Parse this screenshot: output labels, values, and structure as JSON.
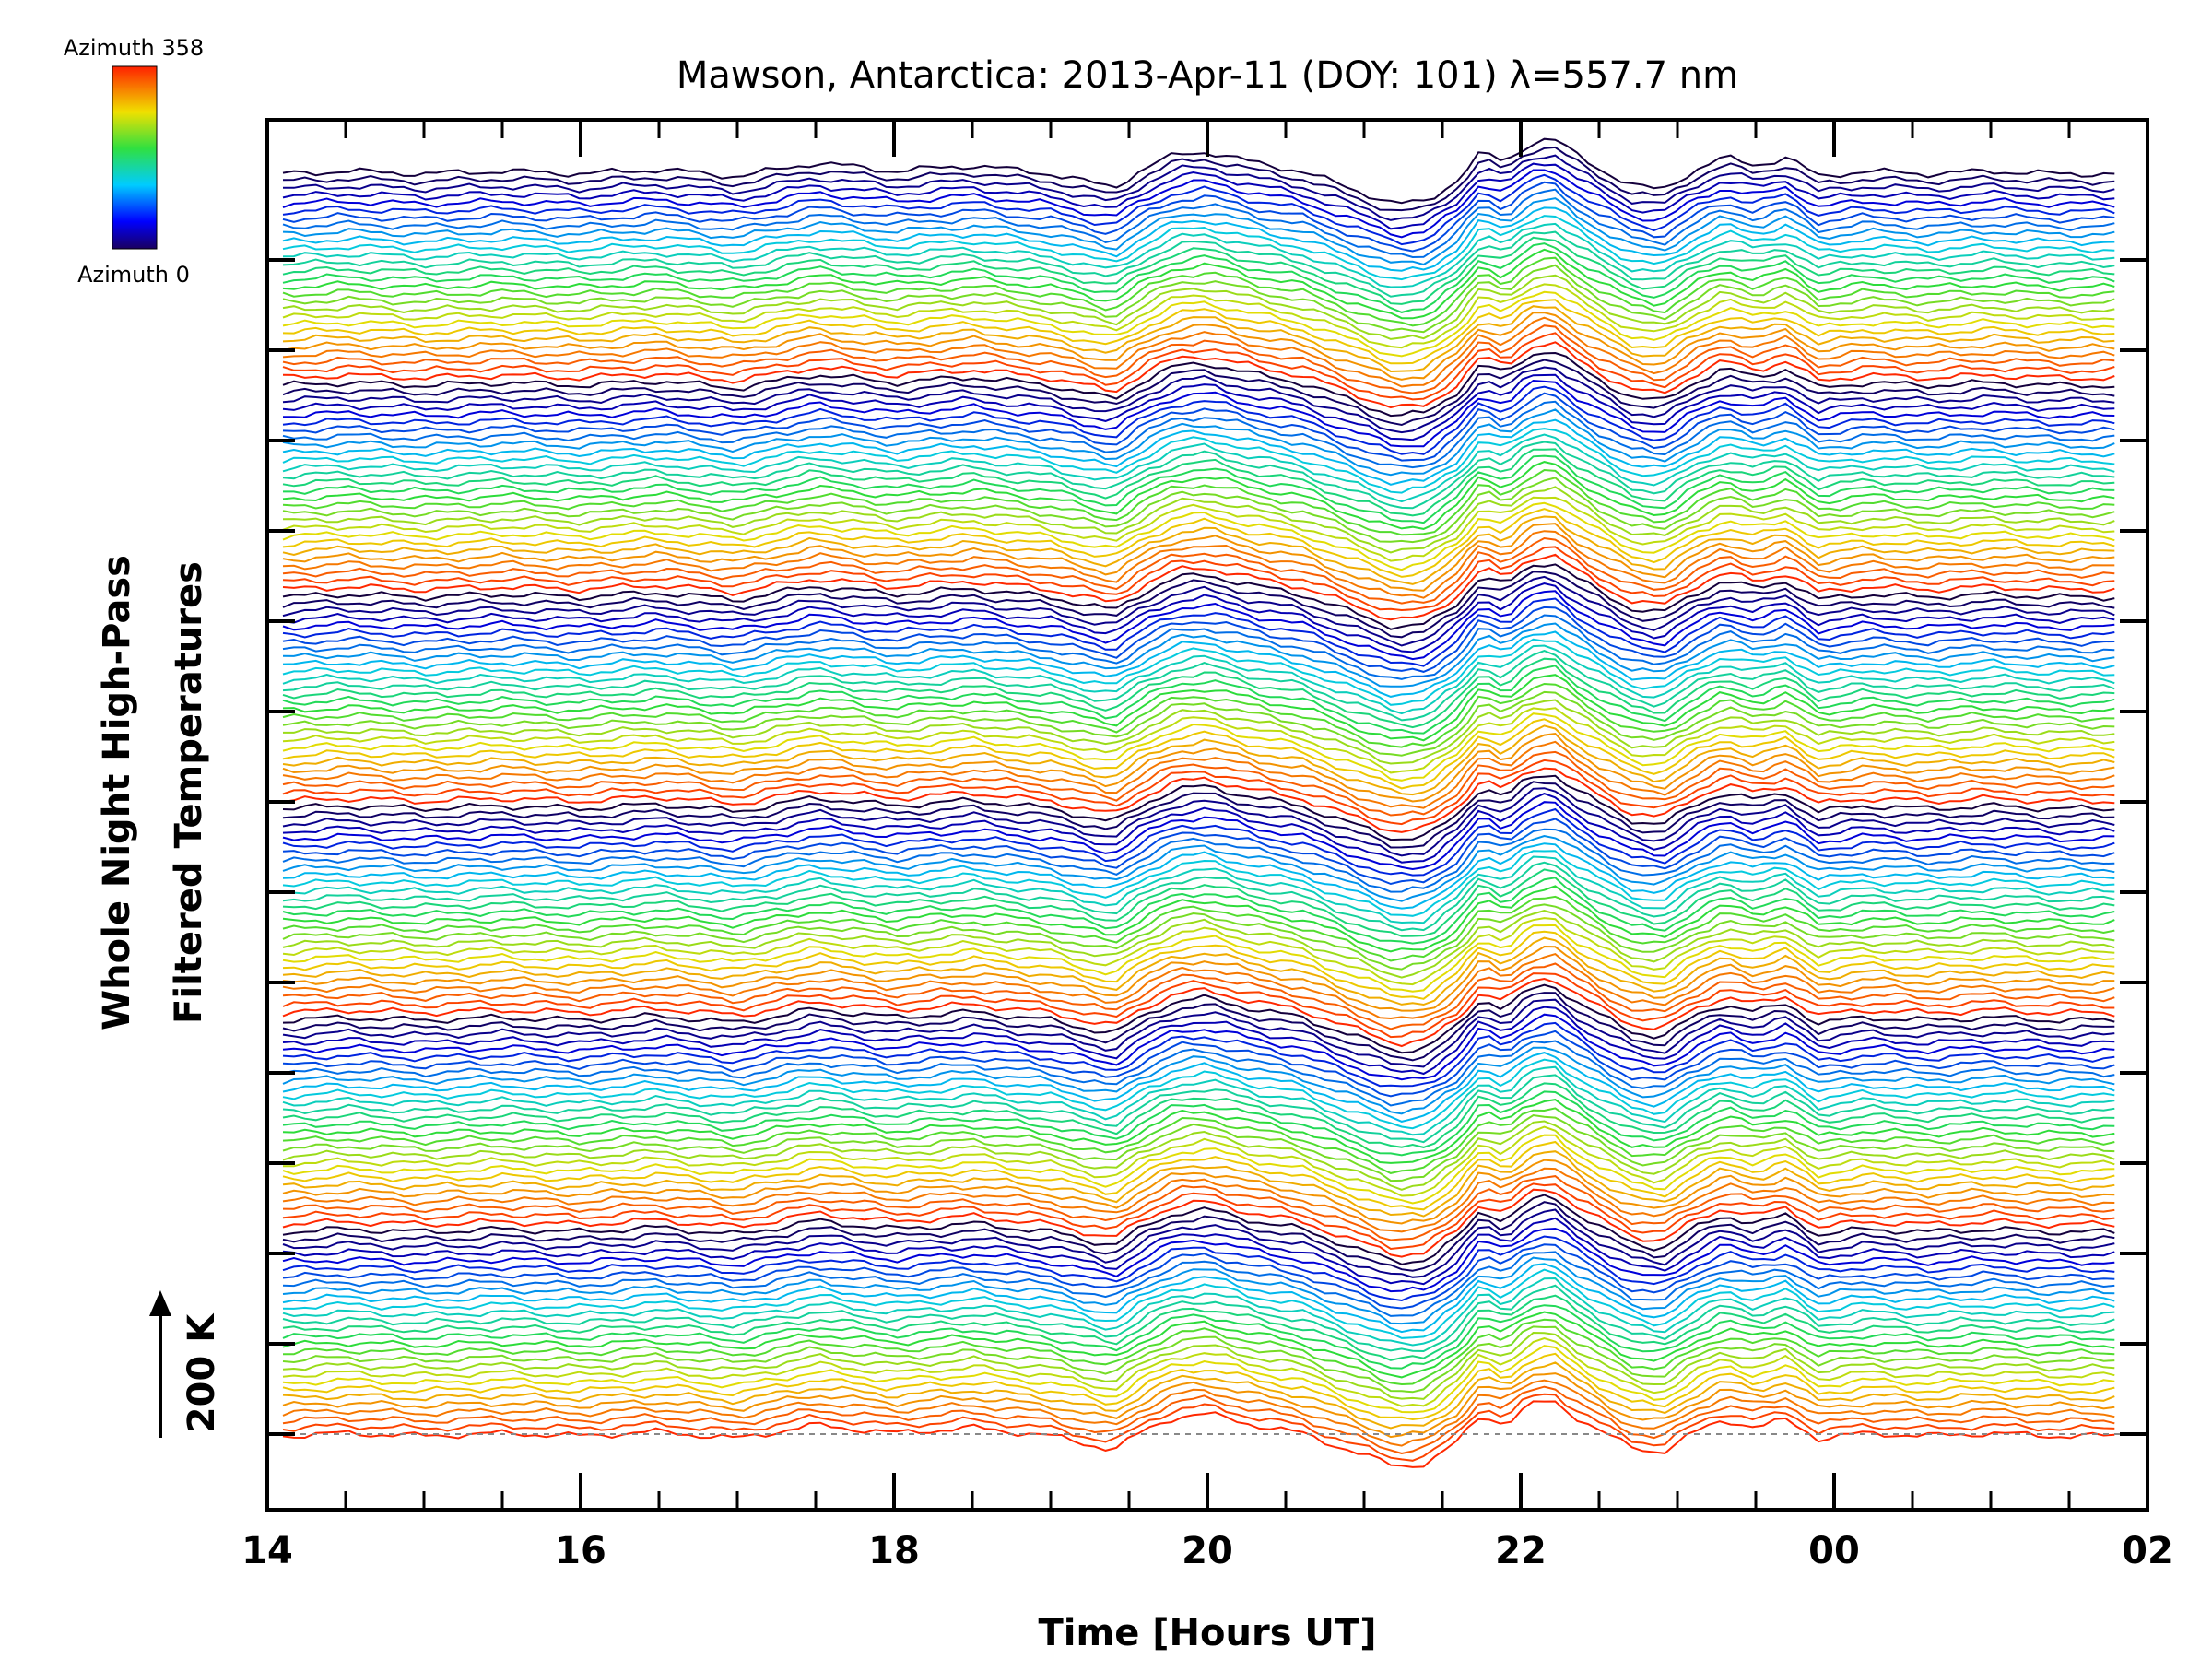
{
  "chart_data": {
    "type": "line",
    "title": "Mawson, Antarctica: 2013-Apr-11 (DOY: 101) λ=557.7 nm",
    "xlabel": "Time [Hours UT]",
    "ylabel_lines": [
      "Whole Night High-Pass",
      "Filtered Temperatures"
    ],
    "scale_bar_label": "200 K",
    "x_ticks": [
      "14",
      "16",
      "18",
      "20",
      "22",
      "00",
      "02"
    ],
    "xlim": [
      14,
      26
    ],
    "colorbar": {
      "top_label": "Azimuth 358",
      "bottom_label": "Azimuth 0"
    },
    "series_count": 168,
    "shared_profile": {
      "x_hours": [
        14.1,
        14.5,
        15.0,
        15.5,
        16.0,
        16.5,
        17.0,
        17.5,
        18.0,
        18.5,
        19.0,
        19.4,
        19.6,
        19.8,
        20.0,
        20.3,
        20.6,
        20.9,
        21.2,
        21.4,
        21.6,
        21.75,
        21.9,
        22.05,
        22.2,
        22.35,
        22.5,
        22.7,
        22.9,
        23.1,
        23.3,
        23.5,
        23.7,
        23.9,
        24.2,
        24.6,
        25.0,
        25.4,
        25.8
      ],
      "y_kelvin": [
        0,
        5,
        0,
        5,
        0,
        8,
        -5,
        20,
        5,
        15,
        0,
        -25,
        10,
        35,
        40,
        20,
        5,
        -25,
        -55,
        -50,
        -10,
        40,
        20,
        55,
        65,
        35,
        10,
        -20,
        -30,
        5,
        30,
        15,
        30,
        -5,
        5,
        0,
        5,
        0,
        0
      ]
    }
  }
}
